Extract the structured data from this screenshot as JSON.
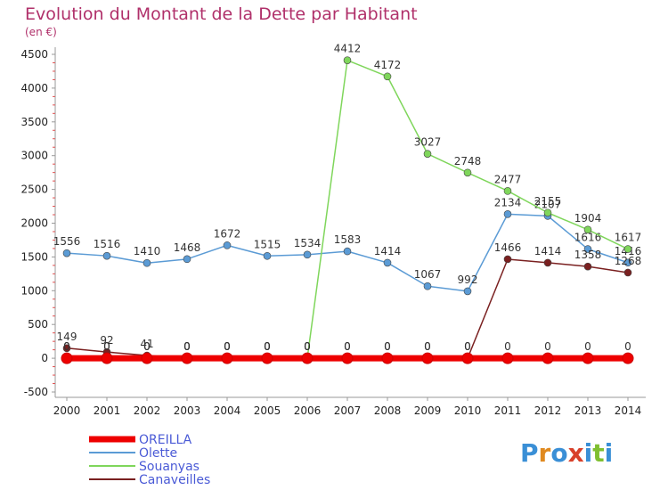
{
  "chart_data": {
    "type": "line",
    "title": "Evolution du Montant de la Dette par Habitant",
    "subtitle": "(en €)",
    "x": [
      "2000",
      "2001",
      "2002",
      "2003",
      "2004",
      "2005",
      "2006",
      "2007",
      "2008",
      "2009",
      "2010",
      "2011",
      "2012",
      "2013",
      "2014"
    ],
    "ylim": [
      -500,
      4500
    ],
    "yticks": [
      -500,
      0,
      500,
      1000,
      1500,
      2000,
      2500,
      3000,
      3500,
      4000,
      4500
    ],
    "grid": false,
    "legend_position": "bottom-left",
    "series": [
      {
        "name": "OREILLA",
        "color": "#ee0000",
        "values": [
          0,
          0,
          0,
          0,
          0,
          0,
          0,
          0,
          0,
          0,
          0,
          0,
          0,
          0,
          0
        ],
        "labels": [
          "0",
          "0",
          "0",
          "0",
          "0",
          "0",
          "0",
          "0",
          "0",
          "0",
          "0",
          "0",
          "0",
          "0",
          "0"
        ]
      },
      {
        "name": "Olette",
        "color": "#5b9bd5",
        "values": [
          1556,
          1516,
          1410,
          1468,
          1672,
          1515,
          1534,
          1583,
          1414,
          1067,
          992,
          2134,
          2107,
          1616,
          1416
        ],
        "labels": [
          "1556",
          "1516",
          "1410",
          "1468",
          "1672",
          "1515",
          "1534",
          "1583",
          "1414",
          "1067",
          "992",
          "2134",
          "2107",
          "1616",
          "1416"
        ]
      },
      {
        "name": "Souanyas",
        "color": "#7fd65b",
        "values": [
          0,
          0,
          0,
          0,
          0,
          0,
          0,
          4412,
          4172,
          3027,
          2748,
          2477,
          2155,
          1904,
          1617
        ],
        "labels": [
          "0",
          "0",
          "0",
          "0",
          "0",
          "0",
          "0",
          "4412",
          "4172",
          "3027",
          "2748",
          "2477",
          "2155",
          "1904",
          "1617"
        ]
      },
      {
        "name": "Canaveilles",
        "color": "#7a2020",
        "values": [
          149,
          92,
          41,
          0,
          0,
          0,
          0,
          0,
          0,
          0,
          0,
          1466,
          1414,
          1358,
          1268
        ],
        "labels": [
          "149",
          "92",
          "41",
          "0",
          "0",
          "0",
          "0",
          "0",
          "0",
          "0",
          "0",
          "1466",
          "1414",
          "1358",
          "1268"
        ]
      }
    ]
  },
  "legend": {
    "items": [
      "OREILLA",
      "Olette",
      "Souanyas",
      "Canaveilles"
    ]
  },
  "logo": {
    "text": "Proxiti"
  }
}
